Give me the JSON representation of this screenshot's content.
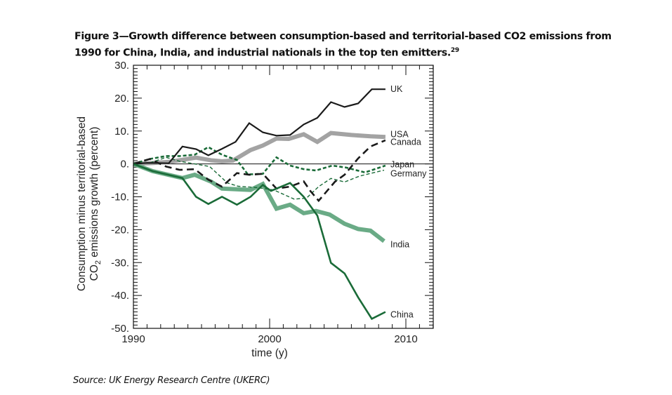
{
  "figure": {
    "title_main": "Figure 3—Growth difference between consumption-based and territorial-based CO2 emissions from 1990 for China, India, and industrial nationals in the top ten emitters.",
    "title_footnote": "29",
    "source": "Source: UK Energy Research Centre (UKERC)"
  },
  "chart_data": {
    "type": "line",
    "title": "Growth difference between consumption-based and territorial-based CO2 emissions from 1990",
    "xlabel": "time (y)",
    "ylabel_line1": "Consumption minus territorial-based",
    "ylabel_line2_prefix": "CO",
    "ylabel_line2_sub": "2",
    "ylabel_line2_suffix": " emissions growth (percent)",
    "xlim": [
      1990,
      2012
    ],
    "ylim": [
      -50,
      30
    ],
    "x_ticks": [
      1990,
      2000,
      2010
    ],
    "x_tick_labels": [
      "1990",
      "2000",
      "2010"
    ],
    "y_ticks": [
      30,
      20,
      10,
      0,
      -10,
      -20,
      -30,
      -40,
      -50
    ],
    "y_tick_labels": [
      "30.",
      "20.",
      "10.",
      "0.",
      "-10.",
      "-20.",
      "-30.",
      "-40.",
      "-50."
    ],
    "zero_line": true,
    "legend": "inline-right",
    "series": [
      {
        "name": "UK",
        "color": "#1a1a1a",
        "style": "solid",
        "weight": "thin",
        "x": [
          1990,
          1991,
          1992.6,
          1993.6,
          1994.6,
          1995.5,
          1996.5,
          1997.5,
          1998.5,
          1999.5,
          2000.5,
          2001.5,
          2002.5,
          2003.5,
          2004.5,
          2005.5,
          2006.5,
          2007.5,
          2008.5
        ],
        "y": [
          0,
          0.3,
          0.2,
          5.3,
          4.5,
          2.6,
          4.6,
          6.7,
          12.4,
          9.6,
          8.6,
          8.8,
          12.0,
          14.0,
          18.8,
          17.3,
          18.4,
          22.7,
          22.7
        ]
      },
      {
        "name": "USA",
        "color": "#a3a3a3",
        "style": "solid",
        "weight": "thick",
        "x": [
          1990,
          1991.5,
          1992.6,
          1994.6,
          1995.7,
          1996.5,
          1997.3,
          1998.6,
          1999.5,
          2000.5,
          2001.4,
          2002.5,
          2003.5,
          2004.5,
          2006,
          2007.4,
          2008.5
        ],
        "y": [
          0,
          0.3,
          0.6,
          1.9,
          1.1,
          0.8,
          1.0,
          4.2,
          5.6,
          7.7,
          7.6,
          9.0,
          6.7,
          9.4,
          8.8,
          8.4,
          8.2
        ]
      },
      {
        "name": "Canada",
        "color": "#1a1a1a",
        "style": "dashed",
        "weight": "medium",
        "x": [
          1990,
          1991.2,
          1992.4,
          1993.4,
          1994.5,
          1995.5,
          1996.5,
          1997.6,
          1998.5,
          1999.5,
          2000.5,
          2001.5,
          2002.5,
          2003,
          2003.6,
          2004.8,
          2005.5,
          2006.5,
          2007.4,
          2008.5
        ],
        "y": [
          0,
          1.5,
          -0.8,
          -1.8,
          -1.6,
          -4.8,
          -6.9,
          -2.8,
          -3.3,
          -3.0,
          -7.5,
          -6.9,
          -5.3,
          -8.3,
          -11.2,
          -5.4,
          -3.3,
          1.7,
          5.3,
          7.2
        ]
      },
      {
        "name": "Japan",
        "color": "#1a6b38",
        "style": "dashed",
        "weight": "medium",
        "x": [
          1990,
          1991.2,
          1992.4,
          1993.4,
          1994.5,
          1995.5,
          1996.5,
          1997.6,
          1998.4,
          1999.5,
          2000.5,
          2001.5,
          2002.5,
          2003.4,
          2004.6,
          2005.6,
          2007,
          2008.5
        ],
        "y": [
          0,
          1.5,
          2.4,
          2.4,
          2.8,
          5.1,
          2.8,
          1.2,
          -3.2,
          -3.0,
          2.0,
          -0.5,
          -1.6,
          -2.0,
          -0.5,
          -1.1,
          -2.6,
          -0.5
        ]
      },
      {
        "name": "Germany",
        "color": "#1a6b38",
        "style": "dashed",
        "weight": "thin",
        "x": [
          1990,
          1991.2,
          1992.4,
          1993.4,
          1994.5,
          1995.6,
          1996.9,
          1997.7,
          1999.1,
          2000.3,
          2001.8,
          2002.7,
          2003.6,
          2004.5,
          2005.5,
          2006.6,
          2008.4
        ],
        "y": [
          0,
          0.3,
          2.0,
          0.8,
          0.0,
          -0.8,
          -5.8,
          -6.8,
          -7.2,
          -7.9,
          -10.7,
          -10.4,
          -6.9,
          -4.4,
          -5.5,
          -3.7,
          -1.9
        ]
      },
      {
        "name": "India",
        "color": "#6aab86",
        "style": "solid",
        "weight": "thick",
        "x": [
          1990,
          1991.4,
          1993.6,
          1994.5,
          1995.7,
          1996.5,
          1998.6,
          1999.5,
          2000.5,
          2001.5,
          2002.5,
          2003.4,
          2004.4,
          2005.5,
          2006.5,
          2007.4,
          2008.4
        ],
        "y": [
          0,
          -2.2,
          -4.3,
          -3.3,
          -5.4,
          -7.5,
          -7.9,
          -6.1,
          -13.6,
          -12.4,
          -15.0,
          -14.3,
          -15.4,
          -18.2,
          -19.8,
          -20.3,
          -23.5
        ]
      },
      {
        "name": "China",
        "color": "#1a6b38",
        "style": "solid",
        "weight": "medium",
        "x": [
          1990,
          1991.4,
          1993.6,
          1994.6,
          1995.5,
          1996.5,
          1997.6,
          1998.6,
          1999.5,
          2000.1,
          2001.5,
          2002.5,
          2003.5,
          2004.5,
          2005.5,
          2006.5,
          2007.5,
          2008.5
        ],
        "y": [
          0,
          -2.2,
          -4.3,
          -10.0,
          -12.2,
          -10.0,
          -12.4,
          -10.0,
          -6.4,
          -8.2,
          -5.8,
          -10.0,
          -15.7,
          -30.1,
          -33.3,
          -40.6,
          -47.1,
          -45.0
        ]
      }
    ],
    "series_labels": [
      {
        "series": "UK",
        "text": "UK"
      },
      {
        "series": "USA",
        "text": "USA"
      },
      {
        "series": "Canada",
        "text": "Canada"
      },
      {
        "series": "Japan",
        "text": "Japan"
      },
      {
        "series": "Germany",
        "text": "Germany"
      },
      {
        "series": "India",
        "text": "India"
      },
      {
        "series": "China",
        "text": "China"
      }
    ]
  }
}
